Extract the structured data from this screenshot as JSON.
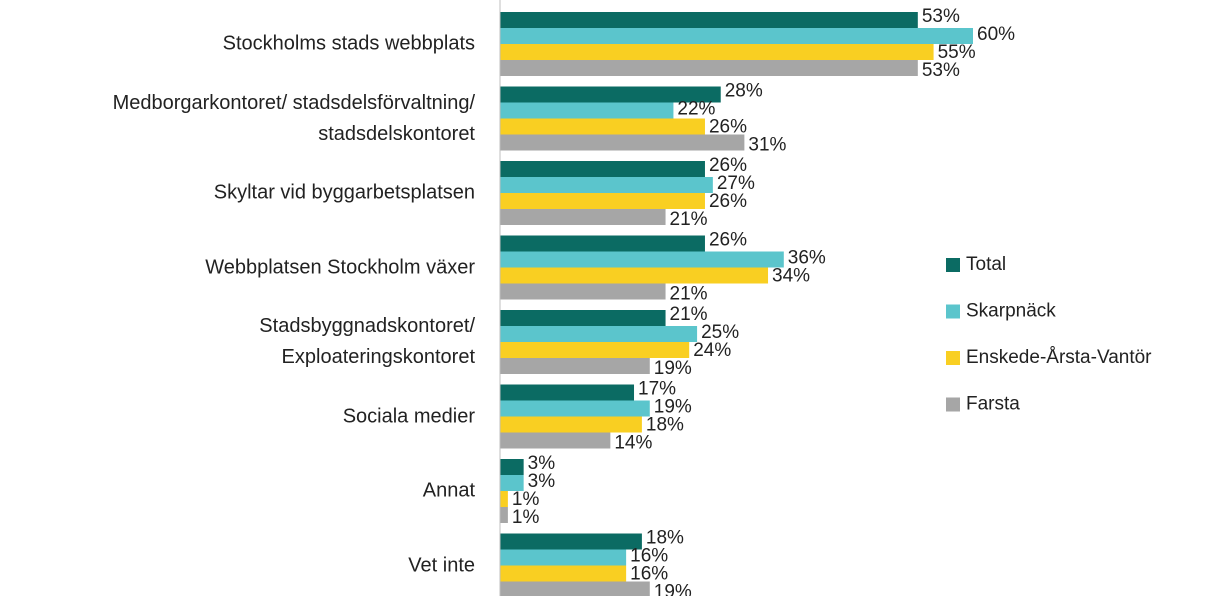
{
  "chart_data": {
    "type": "bar",
    "orientation": "horizontal",
    "categories": [
      "Stockholms stads webbplats",
      "Medborgarkontoret/ stadsdelsförvaltning/\nstadsdelskontoret",
      "Skyltar vid byggarbetsplatsen",
      "Webbplatsen Stockholm växer",
      "Stadsbyggnadskontoret/\nExploateringskontoret",
      "Sociala medier",
      "Annat",
      "Vet inte"
    ],
    "series": [
      {
        "name": "Total",
        "color": "#0b6b63",
        "values": [
          53,
          28,
          26,
          26,
          21,
          17,
          3,
          18
        ],
        "value_labels": [
          "53%",
          "28%",
          "26%",
          "26%",
          "21%",
          "17%",
          "3%",
          "18%"
        ]
      },
      {
        "name": "Skarpnäck",
        "color": "#5bc5cc",
        "values": [
          60,
          22,
          27,
          36,
          25,
          19,
          3,
          16
        ],
        "value_labels": [
          "60%",
          "22%",
          "27%",
          "36%",
          "25%",
          "19%",
          "3%",
          "16%"
        ]
      },
      {
        "name": "Enskede-Årsta-Vantör",
        "color": "#f9cf22",
        "values": [
          55,
          26,
          26,
          34,
          24,
          18,
          1,
          16
        ],
        "value_labels": [
          "55%",
          "26%",
          "26%",
          "34%",
          "24%",
          "18%",
          "1%",
          "16%"
        ]
      },
      {
        "name": "Farsta",
        "color": "#a6a6a6",
        "values": [
          53,
          31,
          21,
          21,
          19,
          14,
          1,
          19
        ],
        "value_labels": [
          "53%",
          "31%",
          "21%",
          "21%",
          "19%",
          "14%",
          "1%",
          "19%"
        ]
      }
    ],
    "xlim": [
      0,
      60
    ],
    "legend": "right"
  }
}
